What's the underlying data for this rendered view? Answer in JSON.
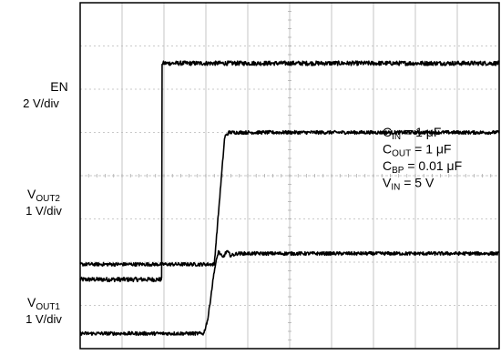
{
  "chart_data": {
    "type": "line",
    "xlabel": "",
    "ylabel": "",
    "grid": true,
    "grid_divisions": {
      "x": 10,
      "y": 8
    },
    "series": [
      {
        "name": "EN",
        "scale": "2 V/div",
        "x": [
          0,
          1.95,
          1.95,
          10
        ],
        "y": [
          1.6,
          1.6,
          6.6,
          6.6
        ],
        "noise": 0.05
      },
      {
        "name": "VOUT2",
        "scale": "1 V/div",
        "x": [
          0,
          3.2,
          3.45,
          3.55,
          10
        ],
        "y": [
          1.95,
          1.95,
          4.9,
          5.0,
          5.0
        ],
        "noise": 0.04
      },
      {
        "name": "VOUT1",
        "scale": "1 V/div",
        "x": [
          0,
          2.95,
          3.05,
          3.2,
          3.3,
          3.4,
          3.5,
          3.6,
          3.75,
          10
        ],
        "y": [
          0.35,
          0.35,
          0.7,
          1.8,
          2.25,
          2.1,
          2.25,
          2.15,
          2.2,
          2.2
        ],
        "noise": 0.04
      }
    ],
    "channel_labels": [
      {
        "id": "en",
        "line1_main": "EN",
        "line1_sub": "",
        "line2": "2 V/div"
      },
      {
        "id": "vout2",
        "line1_main": "V",
        "line1_sub": "OUT2",
        "line2": "1 V/div"
      },
      {
        "id": "vout1",
        "line1_main": "V",
        "line1_sub": "OUT1",
        "line2": "1 V/div"
      }
    ],
    "annotations": [
      {
        "main": "C",
        "sub": "IN",
        "rest": " = 1 μF"
      },
      {
        "main": "C",
        "sub": "OUT",
        "rest": " = 1 μF"
      },
      {
        "main": "C",
        "sub": "BP",
        "rest": " = 0.01 μF"
      },
      {
        "main": "V",
        "sub": "IN",
        "rest": " = 5 V"
      }
    ]
  }
}
